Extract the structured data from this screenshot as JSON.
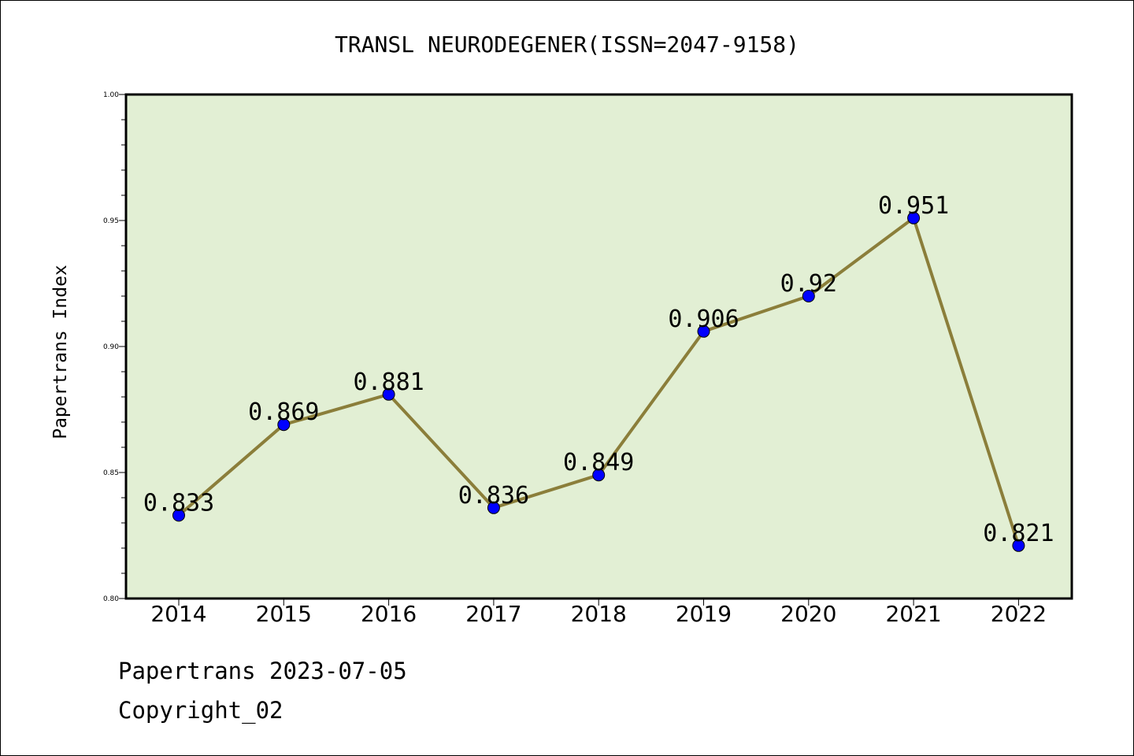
{
  "chart_data": {
    "type": "line",
    "title": "TRANSL NEURODEGENER(ISSN=2047-9158)",
    "xlabel": "",
    "ylabel": "Papertrans Index",
    "categories": [
      "2014",
      "2015",
      "2016",
      "2017",
      "2018",
      "2019",
      "2020",
      "2021",
      "2022"
    ],
    "values": [
      0.833,
      0.869,
      0.881,
      0.836,
      0.849,
      0.906,
      0.92,
      0.951,
      0.821
    ],
    "data_labels": [
      "0.833",
      "0.869",
      "0.881",
      "0.836",
      "0.849",
      "0.906",
      "0.92",
      "0.951",
      "0.821"
    ],
    "ylim": [
      0.8,
      1.0
    ],
    "yticks": [
      "0.80",
      "0.85",
      "0.90",
      "0.95",
      "1.00"
    ],
    "grid": false,
    "colors": {
      "line": "#8b7e3a",
      "marker": "#0000ff",
      "plot_background": "#e2efd4"
    }
  },
  "footer": {
    "line1": "Papertrans 2023-07-05",
    "line2": "Copyright_02"
  }
}
